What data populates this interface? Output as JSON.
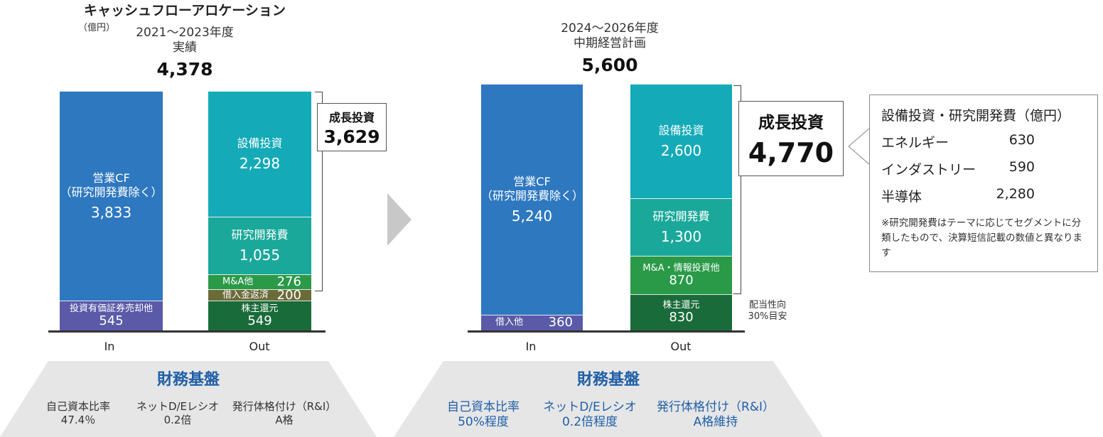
{
  "title": "キャッシュフローアロケーション",
  "unit": "（億円）",
  "chart_data": [
    {
      "type": "bar",
      "period": "2021〜2023年度",
      "label": "実績",
      "total": "4,378",
      "categories": [
        "In",
        "Out"
      ],
      "in_segments": [
        {
          "name": "投資有価証券売却他",
          "value": 545,
          "display": "545",
          "color": "#5a5aa8"
        },
        {
          "name": "営業CF\n（研究開発費除く）",
          "value": 3833,
          "display": "3,833",
          "color": "#2e78c0"
        }
      ],
      "out_segments": [
        {
          "name": "株主還元",
          "value": 549,
          "display": "549",
          "color": "#1a6b3a"
        },
        {
          "name": "借入金返済",
          "value": 200,
          "display": "200",
          "color": "#6b6b3a"
        },
        {
          "name": "M&A他",
          "value": 276,
          "display": "276",
          "color": "#2a9a48"
        },
        {
          "name": "研究開発費",
          "value": 1055,
          "display": "1,055",
          "color": "#1aa89a"
        },
        {
          "name": "設備投資",
          "value": 2298,
          "display": "2,298",
          "color": "#14aab8"
        }
      ],
      "growth_label": "成長投資",
      "growth_value": "3,629"
    },
    {
      "type": "bar",
      "period": "2024〜2026年度",
      "label": "中期経営計画",
      "total": "5,600",
      "categories": [
        "In",
        "Out"
      ],
      "in_segments": [
        {
          "name": "借入他",
          "value": 360,
          "display": "360",
          "color": "#5a5aa8"
        },
        {
          "name": "営業CF\n（研究開発費除く）",
          "value": 5240,
          "display": "5,240",
          "color": "#2e78c0"
        }
      ],
      "out_segments": [
        {
          "name": "株主還元",
          "value": 830,
          "display": "830",
          "color": "#1a6b3a"
        },
        {
          "name": "M&A・情報投資他",
          "value": 870,
          "display": "870",
          "color": "#2a9a48"
        },
        {
          "name": "研究開発費",
          "value": 1300,
          "display": "1,300",
          "color": "#1aa89a"
        },
        {
          "name": "設備投資",
          "value": 2600,
          "display": "2,600",
          "color": "#14aab8"
        }
      ],
      "growth_label": "成長投資",
      "growth_value": "4,770",
      "dividend_note": "配当性向\n30%目安"
    }
  ],
  "breakdown": {
    "title": "設備投資・研究開発費（億円）",
    "rows": [
      {
        "name": "エネルギー",
        "value": "630"
      },
      {
        "name": "インダストリー",
        "value": "590"
      },
      {
        "name": "半導体",
        "value": "2,280"
      }
    ],
    "note": "※研究開発費はテーマに応じてセグメントに分類したもので、決算短信記載の数値と異なります"
  },
  "financial_base": [
    {
      "title": "財務基盤",
      "items": [
        {
          "label": "自己資本比率",
          "value": "47.4％"
        },
        {
          "label": "ネットD/Eレシオ",
          "value": "0.2倍"
        },
        {
          "label": "発行体格付け（R&I）",
          "value": "A格"
        }
      ]
    },
    {
      "title": "財務基盤",
      "items": [
        {
          "label": "自己資本比率",
          "value": "50%程度"
        },
        {
          "label": "ネットD/Eレシオ",
          "value": "0.2倍程度"
        },
        {
          "label": "発行体格付け（R&I）",
          "value": "A格維持"
        }
      ]
    }
  ],
  "colors": {
    "arrow": "#c8c8c8",
    "fin_bg": "#e6e6e6",
    "fin_title": "#1f5fa8",
    "fin_text2": "#1f5fa8"
  }
}
